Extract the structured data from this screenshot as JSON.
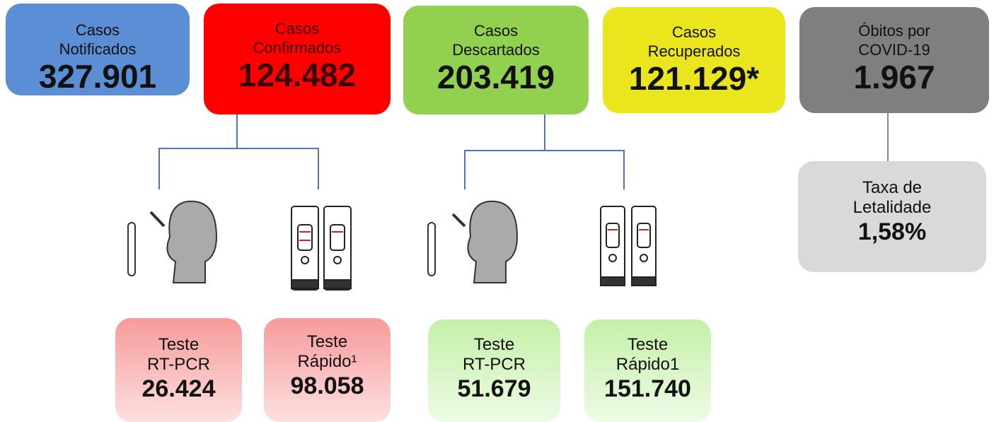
{
  "cards": [
    {
      "lines": [
        "Casos",
        "Notificados"
      ],
      "value": "327.901"
    },
    {
      "lines": [
        "Casos",
        "Confirmados"
      ],
      "value": "124.482"
    },
    {
      "lines": [
        "Casos",
        "Descartados"
      ],
      "value": "203.419"
    },
    {
      "lines": [
        "Casos",
        "Recuperados"
      ],
      "value": "121.129*"
    },
    {
      "lines": [
        "Óbitos por",
        "COVID-19"
      ],
      "value": "1.967"
    }
  ],
  "rate": {
    "lines": [
      "Taxa de",
      "Letalidade"
    ],
    "value": "1,58%"
  },
  "tests": [
    {
      "lines": [
        "Teste",
        "RT-PCR"
      ],
      "value": "26.424"
    },
    {
      "lines": [
        "Teste",
        "Rápido¹"
      ],
      "value": "98.058"
    },
    {
      "lines": [
        "Teste",
        "RT-PCR"
      ],
      "value": "51.679"
    },
    {
      "lines": [
        "Teste",
        "Rápido1"
      ],
      "value": "151.740"
    }
  ]
}
